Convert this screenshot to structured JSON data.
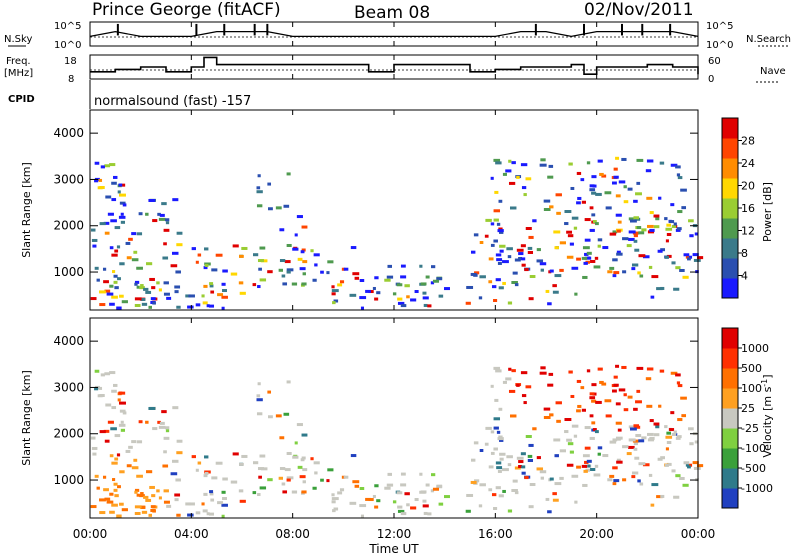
{
  "header": {
    "station": "Prince George (fitACF)",
    "beam": "Beam 08",
    "date": "02/Nov/2011"
  },
  "top_panels": {
    "nsky_label": "N.Sky",
    "nsearch_label": "N.Search",
    "n_tick_top_left": "10^5",
    "n_tick_bottom_left": "10^0",
    "n_tick_top_right": "10^5",
    "n_tick_bottom_right": "10^0",
    "freq_label_line1": "Freq.",
    "freq_label_line2": "[MHz]",
    "freq_tick_high": "18",
    "freq_tick_low": "8",
    "nave_label": "Nave",
    "nave_tick_high": "60",
    "nave_tick_low": "0",
    "cpid_label": "CPID",
    "cpid_text": "normalsound (fast) -157"
  },
  "axes": {
    "xlabel": "Time UT",
    "x_ticks": [
      "00:00",
      "04:00",
      "08:00",
      "12:00",
      "16:00",
      "20:00",
      "00:00"
    ],
    "ylabel": "Slant Range [km]",
    "y_ticks": [
      "1000",
      "2000",
      "3000",
      "4000"
    ]
  },
  "power_colorbar": {
    "label": "Power [dB]",
    "ticks": [
      "4",
      "8",
      "12",
      "16",
      "20",
      "24",
      "28"
    ],
    "colors": [
      "#1a1aff",
      "#2a4fb0",
      "#3a7a8a",
      "#4f9a4f",
      "#9acd32",
      "#ffd700",
      "#ff8c00",
      "#ff4500",
      "#e00000"
    ]
  },
  "velocity_colorbar": {
    "label": "Velocity [m s",
    "label_sup": "-1",
    "label_end": "]",
    "ticks": [
      "1000",
      "500",
      "100",
      "25",
      "-25",
      "-100",
      "-500",
      "-1000"
    ],
    "colors": [
      "#2040c0",
      "#2f7a8a",
      "#3aa03a",
      "#7fd040",
      "#c8c8c0",
      "#ffa020",
      "#ff7000",
      "#ff3000",
      "#e00000"
    ]
  },
  "chart_data": [
    {
      "type": "line",
      "title": "N.Sky / N.Search",
      "x": [
        0,
        1,
        2,
        3,
        4,
        5,
        6,
        7,
        8,
        9,
        10,
        11,
        12,
        13,
        14,
        15,
        16,
        17,
        18,
        19,
        20,
        21,
        22,
        23,
        24
      ],
      "series": [
        {
          "name": "N.Sky",
          "values": [
            2,
            3,
            2,
            2,
            2,
            3,
            3,
            3,
            2,
            2,
            2,
            2,
            2,
            2,
            2,
            2,
            2,
            3,
            3,
            2,
            3,
            3,
            3,
            3,
            2
          ]
        }
      ],
      "ylim": [
        0,
        5
      ]
    },
    {
      "type": "line",
      "title": "Freq. [MHz] / Nave",
      "x": [
        0,
        1,
        2,
        3,
        4,
        4.5,
        5,
        6,
        7,
        8,
        9,
        10,
        11,
        12,
        13,
        14,
        15,
        16,
        17,
        18,
        19,
        19.5,
        20,
        21,
        22,
        23,
        24
      ],
      "series": [
        {
          "name": "Freq.",
          "values": [
            11,
            12,
            13,
            11,
            13,
            17,
            14,
            14,
            14,
            14,
            14,
            14,
            11,
            14,
            14,
            14,
            11,
            12,
            13,
            13,
            14,
            10,
            13,
            13,
            14,
            13,
            10
          ]
        }
      ],
      "ylim": [
        8,
        18
      ]
    },
    {
      "type": "heatmap",
      "title": "Power [dB]",
      "xlabel": "Time UT",
      "ylabel": "Slant Range [km]",
      "xlim": [
        0,
        24
      ],
      "ylim": [
        180,
        4500
      ],
      "zlim": [
        0,
        30
      ]
    },
    {
      "type": "heatmap",
      "title": "Velocity [m s-1]",
      "xlabel": "Time UT",
      "ylabel": "Slant Range [km]",
      "xlim": [
        0,
        24
      ],
      "ylim": [
        180,
        4500
      ],
      "zlim": [
        -1000,
        1000
      ]
    }
  ]
}
